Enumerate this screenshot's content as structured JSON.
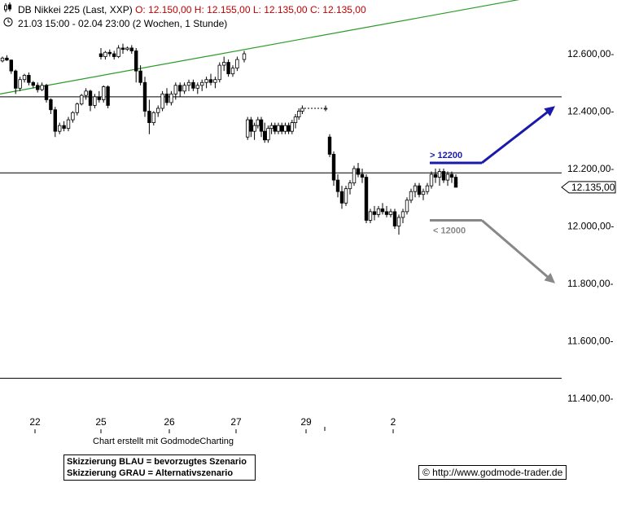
{
  "header": {
    "instrument": "DB Nikkei 225 (Last, XXP)",
    "open": "O: 12.150,00",
    "high": "H: 12.155,00",
    "low": "L: 12.135,00",
    "close": "C: 12.135,00",
    "range": "21.03 15:00 - 02.04 23:00 (2 Wochen, 1 Stunde)"
  },
  "icons": {
    "chart": "candle-chart-icon",
    "clock": "clock-icon"
  },
  "colors": {
    "bull": "#ffffff",
    "bear": "#000000",
    "trend": "#2a9a2a",
    "blue": "#1a1aaa",
    "grey": "#888888"
  },
  "chart_data": {
    "type": "candlestick",
    "ylim": [
      11300,
      12800
    ],
    "y_ticks": [
      {
        "value": 12600,
        "label": "12.600,00-"
      },
      {
        "value": 12400,
        "label": "12.400,00-"
      },
      {
        "value": 12200,
        "label": "12.200,00-"
      },
      {
        "value": 12000,
        "label": "12.000,00-"
      },
      {
        "value": 11800,
        "label": "11.800,00-"
      },
      {
        "value": 11600,
        "label": "11.600,00-"
      },
      {
        "value": 11400,
        "label": "11.400,00-"
      }
    ],
    "x_ticks": [
      "22",
      "25",
      "26",
      "27",
      "29",
      "2"
    ],
    "last_price_label": "12.135,00",
    "last_price": 12135,
    "horizontal_lines": [
      12450,
      12185,
      11470
    ],
    "trendline": {
      "from": [
        0,
        12460
      ],
      "to": [
        63.6,
        12795
      ]
    },
    "candles": [
      [
        12575,
        12590,
        12570,
        12585
      ],
      [
        12585,
        12595,
        12575,
        12578
      ],
      [
        12578,
        12580,
        12530,
        12540
      ],
      [
        12540,
        12545,
        12460,
        12480
      ],
      [
        12480,
        12520,
        12470,
        12510
      ],
      [
        12510,
        12530,
        12500,
        12525
      ],
      [
        12525,
        12535,
        12490,
        12500
      ],
      [
        12500,
        12505,
        12480,
        12490
      ],
      [
        12490,
        12500,
        12465,
        12475
      ],
      [
        12475,
        12500,
        12470,
        12490
      ],
      [
        12490,
        12495,
        12430,
        12440
      ],
      [
        12440,
        12445,
        12390,
        12405
      ],
      [
        12405,
        12415,
        12310,
        12330
      ],
      [
        12330,
        12360,
        12320,
        12350
      ],
      [
        12350,
        12365,
        12330,
        12340
      ],
      [
        12340,
        12380,
        12330,
        12370
      ],
      [
        12370,
        12400,
        12360,
        12395
      ],
      [
        12395,
        12430,
        12385,
        12425
      ],
      [
        12425,
        12460,
        12420,
        12455
      ],
      [
        12455,
        12480,
        12440,
        12470
      ],
      [
        12470,
        12475,
        12400,
        12420
      ],
      [
        12420,
        12460,
        12410,
        12450
      ],
      [
        12450,
        12470,
        12430,
        12440
      ],
      [
        12440,
        12490,
        12430,
        12485
      ],
      [
        12485,
        12490,
        12410,
        12420
      ],
      [
        12600,
        12620,
        12580,
        12590
      ],
      [
        12590,
        12610,
        12580,
        12605
      ],
      [
        12605,
        12615,
        12590,
        12600
      ],
      [
        12600,
        12610,
        12580,
        12590
      ],
      [
        12590,
        12630,
        12585,
        12620
      ],
      [
        12620,
        12635,
        12600,
        12615
      ],
      [
        12615,
        12625,
        12610,
        12620
      ],
      [
        12620,
        12630,
        12600,
        12610
      ],
      [
        12610,
        12620,
        12500,
        12540
      ],
      [
        12540,
        12560,
        12490,
        12500
      ],
      [
        12500,
        12520,
        12380,
        12400
      ],
      [
        12400,
        12440,
        12320,
        12360
      ],
      [
        12360,
        12400,
        12350,
        12395
      ],
      [
        12395,
        12420,
        12380,
        12410
      ],
      [
        12410,
        12470,
        12400,
        12460
      ],
      [
        12460,
        12480,
        12420,
        12430
      ],
      [
        12430,
        12470,
        12420,
        12460
      ],
      [
        12460,
        12500,
        12440,
        12490
      ],
      [
        12490,
        12500,
        12450,
        12470
      ],
      [
        12470,
        12500,
        12460,
        12490
      ],
      [
        12490,
        12510,
        12470,
        12500
      ],
      [
        12500,
        12510,
        12470,
        12480
      ],
      [
        12480,
        12500,
        12460,
        12490
      ],
      [
        12490,
        12510,
        12470,
        12500
      ],
      [
        12500,
        12520,
        12480,
        12510
      ],
      [
        12510,
        12530,
        12490,
        12500
      ],
      [
        12500,
        12520,
        12480,
        12510
      ],
      [
        12510,
        12570,
        12500,
        12560
      ],
      [
        12560,
        12590,
        12540,
        12570
      ],
      [
        12570,
        12580,
        12520,
        12530
      ],
      [
        12530,
        12560,
        12520,
        12550
      ],
      [
        12550,
        12590,
        12540,
        12580
      ],
      [
        12580,
        12610,
        12570,
        12600
      ],
      [
        12310,
        12380,
        12300,
        12370
      ],
      [
        12370,
        12380,
        12310,
        12330
      ],
      [
        12330,
        12360,
        12300,
        12350
      ],
      [
        12350,
        12380,
        12340,
        12370
      ],
      [
        12370,
        12380,
        12310,
        12330
      ],
      [
        12330,
        12360,
        12290,
        12300
      ],
      [
        12300,
        12350,
        12290,
        12340
      ],
      [
        12340,
        12360,
        12320,
        12350
      ],
      [
        12350,
        12360,
        12320,
        12330
      ],
      [
        12330,
        12360,
        12320,
        12350
      ],
      [
        12350,
        12360,
        12320,
        12330
      ],
      [
        12330,
        12360,
        12320,
        12350
      ],
      [
        12350,
        12360,
        12320,
        12330
      ],
      [
        12330,
        12370,
        12320,
        12360
      ],
      [
        12360,
        12390,
        12340,
        12380
      ],
      [
        12380,
        12410,
        12370,
        12400
      ],
      [
        12400,
        12420,
        12390,
        12410
      ],
      [
        12410,
        12420,
        12400,
        12410
      ],
      [
        12310,
        12320,
        12240,
        12250
      ],
      [
        12250,
        12260,
        12140,
        12160
      ],
      [
        12160,
        12180,
        12100,
        12120
      ],
      [
        12120,
        12140,
        12060,
        12080
      ],
      [
        12080,
        12140,
        12070,
        12130
      ],
      [
        12130,
        12160,
        12110,
        12150
      ],
      [
        12150,
        12210,
        12140,
        12200
      ],
      [
        12200,
        12220,
        12170,
        12180
      ],
      [
        12180,
        12200,
        12150,
        12170
      ],
      [
        12170,
        12180,
        12010,
        12020
      ],
      [
        12020,
        12060,
        12010,
        12050
      ],
      [
        12050,
        12070,
        12020,
        12040
      ],
      [
        12040,
        12070,
        12030,
        12060
      ],
      [
        12060,
        12080,
        12040,
        12050
      ],
      [
        12050,
        12070,
        12030,
        12040
      ],
      [
        12040,
        12060,
        12030,
        12050
      ],
      [
        12050,
        12060,
        11990,
        12000
      ],
      [
        12000,
        12040,
        11970,
        12030
      ],
      [
        12030,
        12060,
        12010,
        12050
      ],
      [
        12050,
        12100,
        12040,
        12090
      ],
      [
        12090,
        12130,
        12080,
        12120
      ],
      [
        12120,
        12150,
        12100,
        12140
      ],
      [
        12140,
        12150,
        12100,
        12110
      ],
      [
        12110,
        12130,
        12090,
        12120
      ],
      [
        12120,
        12150,
        12110,
        12140
      ],
      [
        12140,
        12190,
        12130,
        12180
      ],
      [
        12180,
        12200,
        12150,
        12170
      ],
      [
        12170,
        12200,
        12140,
        12190
      ],
      [
        12190,
        12200,
        12150,
        12160
      ],
      [
        12160,
        12190,
        12140,
        12180
      ],
      [
        12180,
        12190,
        12150,
        12170
      ],
      [
        12170,
        12180,
        12140,
        12150
      ],
      [
        12150,
        12155,
        12135,
        12135
      ]
    ],
    "scenarios": [
      {
        "label": "> 12200",
        "level": 12220,
        "target": 12400,
        "color": "#1a1aaa"
      },
      {
        "label": "< 12000",
        "level": 12020,
        "target": 11820,
        "color": "#888888"
      }
    ]
  },
  "footer": {
    "credit": "Chart erstellt mit GodmodeCharting",
    "legend_blue": "Skizzierung BLAU = bevorzugtes Szenario",
    "legend_grey": "Skizzierung GRAU = Alternativszenario",
    "copyright": "© http://www.godmode-trader.de"
  }
}
